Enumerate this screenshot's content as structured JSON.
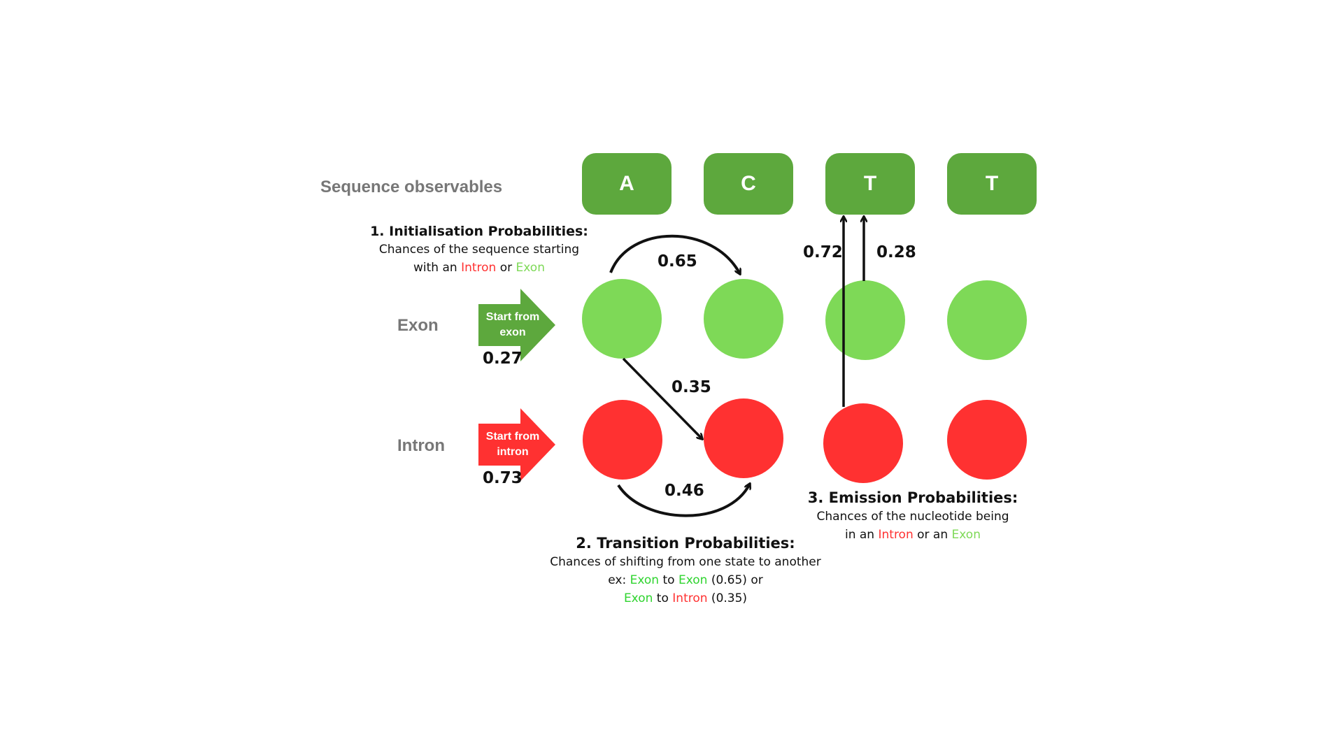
{
  "labels": {
    "sequence_observables": "Sequence observables",
    "exon": "Exon",
    "intron": "Intron"
  },
  "observables": [
    "A",
    "C",
    "T",
    "T"
  ],
  "start_arrows": {
    "exon_text": "Start from exon",
    "intron_text": "Start from intron",
    "exon_prob": "0.27",
    "intron_prob": "0.73"
  },
  "transitions": {
    "exon_to_exon": "0.65",
    "exon_to_intron": "0.35",
    "intron_to_intron": "0.46"
  },
  "emissions": {
    "left": "0.72",
    "right": "0.28"
  },
  "initialisation": {
    "heading": "1. Initialisation Probabilities:",
    "line1": "Chances of the sequence starting",
    "line2_pre": "with an ",
    "intron": "Intron",
    "or": " or ",
    "exon": "Exon"
  },
  "transition_note": {
    "heading": "2. Transition Probabilities:",
    "line1": "Chances of shifting from one state to another",
    "line2_pre": "ex: ",
    "exon": "Exon",
    "to": " to ",
    "line2_post": " (0.65) or",
    "intron": "Intron",
    "line3_post": " (0.35)"
  },
  "emission_note": {
    "heading": "3. Emission Probabilities:",
    "line1": "Chances of the nucleotide being",
    "line2_pre": "in an ",
    "intron": "Intron",
    "or_an": " or an ",
    "exon": "Exon"
  },
  "colors": {
    "observable_box": "#5da83d",
    "exon_state": "#7ed957",
    "intron_state": "#ff3131",
    "start_exon_arrow": "#5da83d",
    "start_intron_arrow": "#ff3131"
  }
}
